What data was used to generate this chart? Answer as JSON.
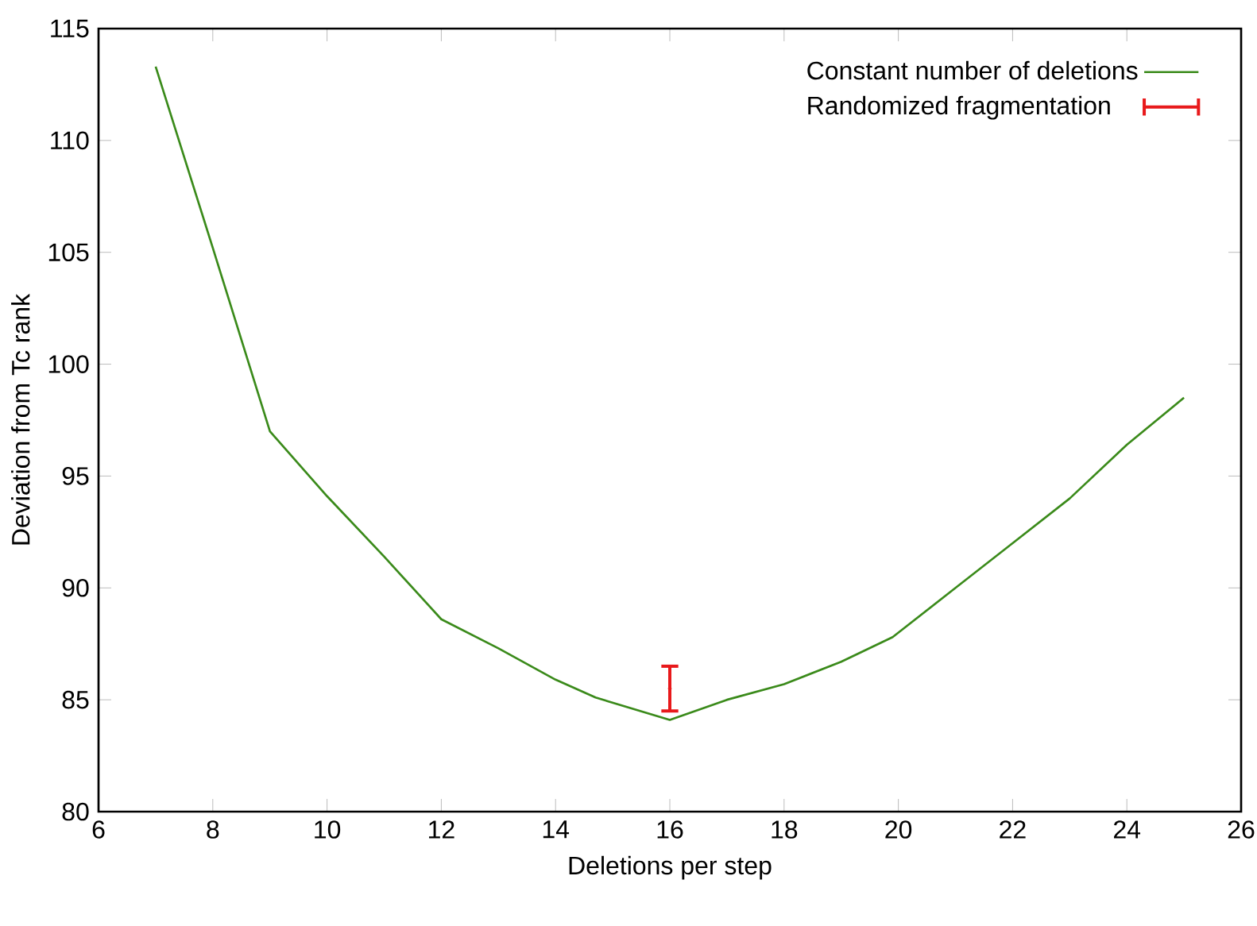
{
  "chart_data": {
    "type": "line",
    "xlabel": "Deletions per step",
    "ylabel": "Deviation from Tc rank",
    "xlim": [
      6,
      26
    ],
    "xticks": [
      6,
      8,
      10,
      12,
      14,
      16,
      18,
      20,
      22,
      24,
      26
    ],
    "ylim": [
      80,
      115
    ],
    "yticks": [
      80,
      85,
      90,
      95,
      100,
      105,
      110,
      115
    ],
    "grid": false,
    "legend": "top right",
    "series": [
      {
        "name": "Constant number of deletions",
        "color": "#3a8a1a",
        "line_style": "solid",
        "marker": "none",
        "x": [
          7,
          8,
          9,
          10,
          11,
          12,
          13,
          14,
          14.7,
          16,
          17,
          18,
          19,
          19.9,
          21,
          22,
          23,
          24,
          25
        ],
        "values": [
          113.3,
          105.2,
          97.0,
          94.1,
          91.4,
          88.6,
          87.3,
          85.9,
          85.1,
          84.1,
          85.0,
          85.7,
          86.7,
          87.8,
          90.0,
          92.0,
          94.0,
          96.4,
          98.5
        ]
      },
      {
        "name": "Randomized fragmentation",
        "type": "scatter",
        "color": "#e8191b",
        "marker": "none",
        "x": [
          16
        ],
        "values": [
          85.5
        ],
        "errors": [
          1.0
        ]
      }
    ]
  }
}
